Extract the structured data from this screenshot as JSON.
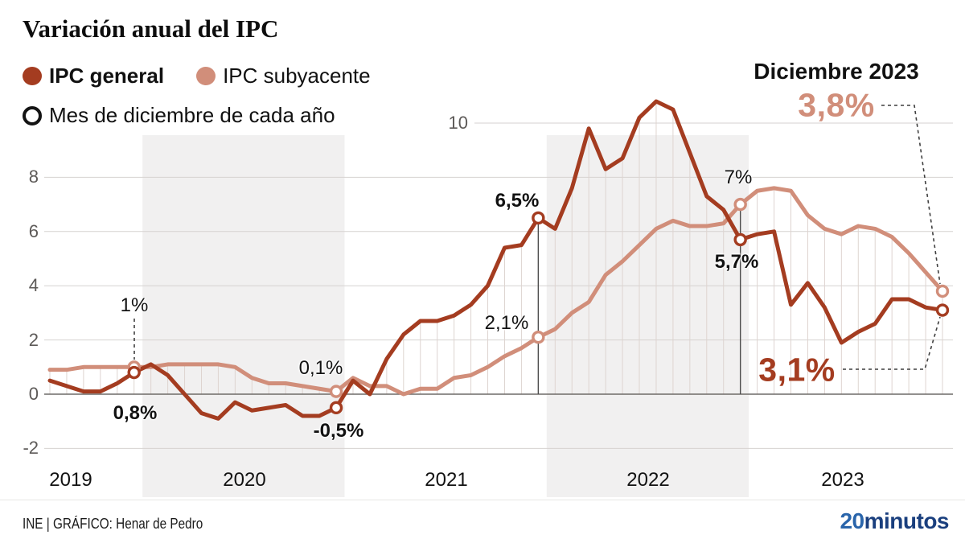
{
  "title": "Variación anual del IPC",
  "legend": {
    "series": [
      {
        "label": "IPC general",
        "color": "#a43c20"
      },
      {
        "label": "IPC subyacente",
        "color": "#d18e7a"
      }
    ],
    "december_marker_label": "Mes de diciembre de cada año"
  },
  "callout": {
    "heading": "Diciembre 2023",
    "subyacente_value": "3,8%",
    "general_value": "3,1%"
  },
  "annotations": {
    "dec2019_subyacente": "1%",
    "dec2019_general": "0,8%",
    "dec2020_subyacente": "0,1%",
    "dec2020_general": "-0,5%",
    "dec2021_general": "6,5%",
    "dec2021_subyacente": "2,1%",
    "dec2022_subyacente": "7%",
    "dec2022_general": "5,7%"
  },
  "footer": {
    "source": "INE  |  GRÁFICO: Henar de Pedro",
    "logo_20": "20",
    "logo_minutos": "minutos"
  },
  "chart_data": {
    "type": "line",
    "title": "Variación anual del IPC",
    "x_range": "Jul 2019 - Dec 2023, monthly",
    "x_years": [
      "2019",
      "2020",
      "2021",
      "2022",
      "2023"
    ],
    "ylim": [
      -2,
      11
    ],
    "yticks": [
      {
        "value": -2,
        "label": "-2"
      },
      {
        "value": 0,
        "label": "0"
      },
      {
        "value": 2,
        "label": "2"
      },
      {
        "value": 4,
        "label": "4"
      },
      {
        "value": 6,
        "label": "6"
      },
      {
        "value": 8,
        "label": "8"
      },
      {
        "value": 10,
        "label": "10"
      }
    ],
    "grid": "horizontal gridlines + monthly drop lines down to zero axis",
    "legend_position": "top-left",
    "shaded_years": [
      2020,
      2022
    ],
    "dec_indices": [
      5,
      17,
      29,
      41,
      53
    ],
    "colors": {
      "general": "#a43c20",
      "subyacente": "#d18e7a",
      "band": "#f1f0f0",
      "grid": "#d6d2d0",
      "zero_axis": "#6f6b69",
      "drop_line": "#ded4d0",
      "dashed": "#3f3f3f"
    },
    "series": [
      {
        "name": "IPC general",
        "color": "#a43c20",
        "values": [
          0.5,
          0.3,
          0.1,
          0.1,
          0.4,
          0.8,
          1.1,
          0.7,
          0.0,
          -0.7,
          -0.9,
          -0.3,
          -0.6,
          -0.5,
          -0.4,
          -0.8,
          -0.8,
          -0.5,
          0.5,
          0.0,
          1.3,
          2.2,
          2.7,
          2.7,
          2.9,
          3.3,
          4.0,
          5.4,
          5.5,
          6.5,
          6.1,
          7.6,
          9.8,
          8.3,
          8.7,
          10.2,
          10.8,
          10.5,
          8.9,
          7.3,
          6.8,
          5.7,
          5.9,
          6.0,
          3.3,
          4.1,
          3.2,
          1.9,
          2.3,
          2.6,
          3.5,
          3.5,
          3.2,
          3.1
        ]
      },
      {
        "name": "IPC subyacente",
        "color": "#d18e7a",
        "values": [
          0.9,
          0.9,
          1.0,
          1.0,
          1.0,
          1.0,
          1.0,
          1.1,
          1.1,
          1.1,
          1.1,
          1.0,
          0.6,
          0.4,
          0.4,
          0.3,
          0.2,
          0.1,
          0.6,
          0.3,
          0.3,
          0.0,
          0.2,
          0.2,
          0.6,
          0.7,
          1.0,
          1.4,
          1.7,
          2.1,
          2.4,
          3.0,
          3.4,
          4.4,
          4.9,
          5.5,
          6.1,
          6.4,
          6.2,
          6.2,
          6.3,
          7.0,
          7.5,
          7.6,
          7.5,
          6.6,
          6.1,
          5.9,
          6.2,
          6.1,
          5.8,
          5.2,
          4.5,
          3.8
        ]
      }
    ],
    "december_values": {
      "2019": {
        "general": 0.8,
        "subyacente": 1.0
      },
      "2020": {
        "general": -0.5,
        "subyacente": 0.1
      },
      "2021": {
        "general": 6.5,
        "subyacente": 2.1
      },
      "2022": {
        "general": 5.7,
        "subyacente": 7.0
      },
      "2023": {
        "general": 3.1,
        "subyacente": 3.8
      }
    }
  }
}
